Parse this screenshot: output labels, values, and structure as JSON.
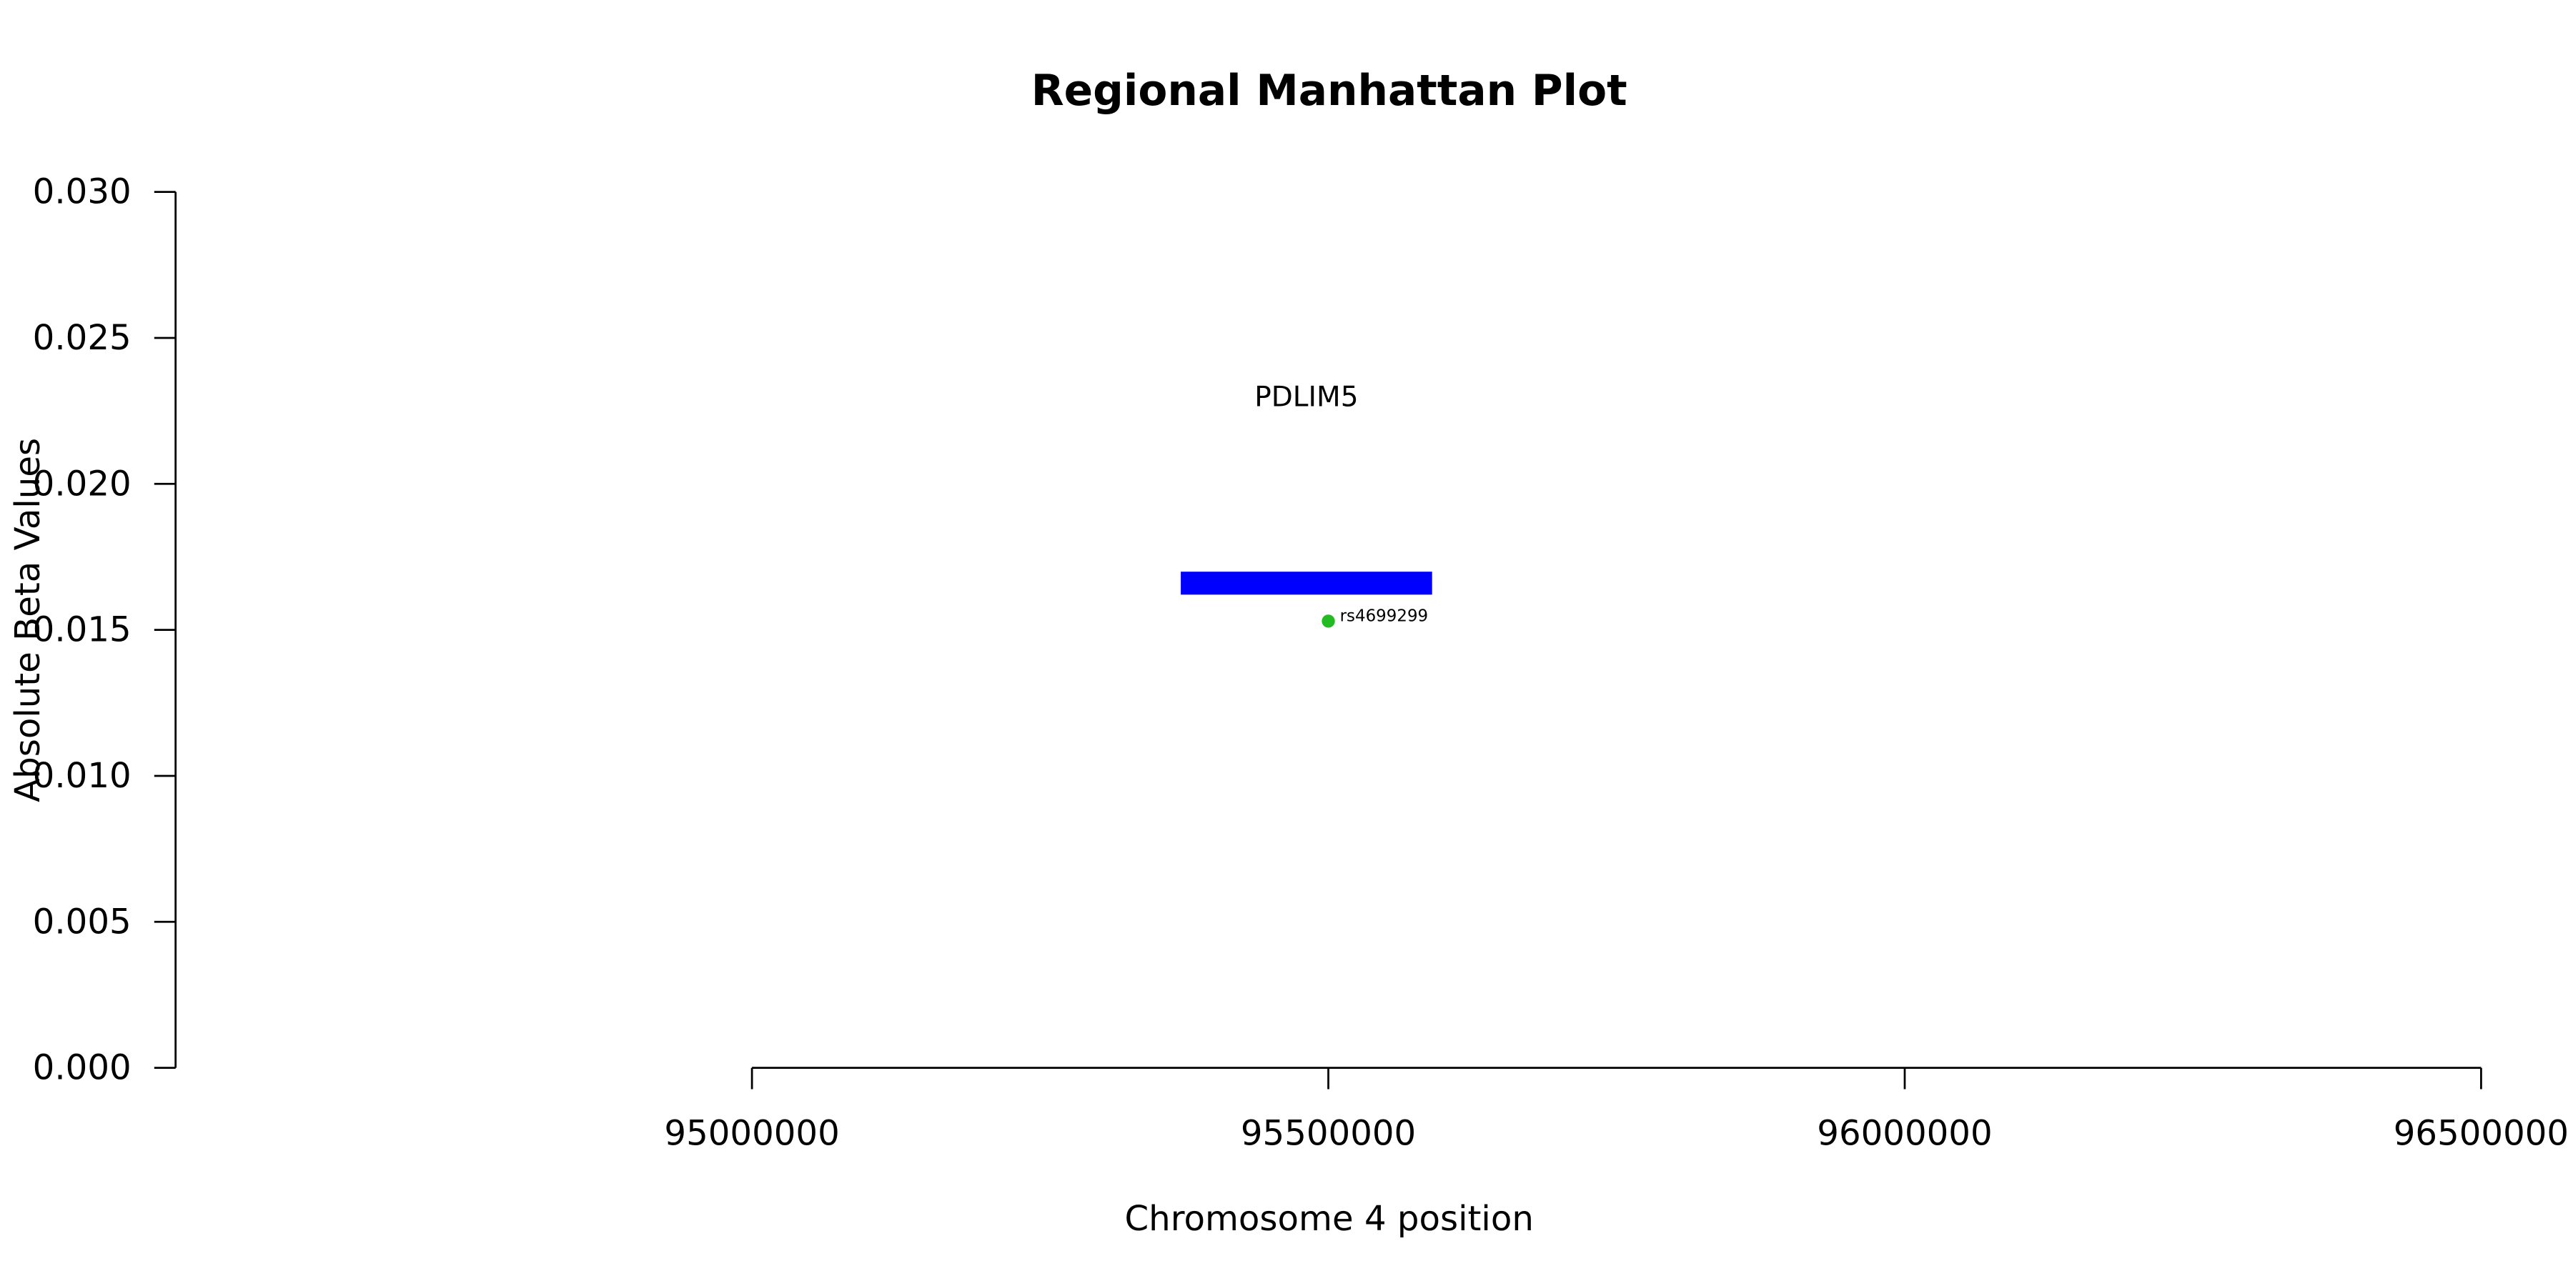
{
  "chart_data": {
    "type": "scatter",
    "title": "Regional Manhattan Plot",
    "x_label": "Chromosome 4 position",
    "y_label": "Absolute Beta Values",
    "xlim": [
      94500000,
      96500000
    ],
    "ylim": [
      0,
      0.03
    ],
    "xticks": [
      95000000,
      95500000,
      96000000,
      96500000
    ],
    "yticks": [
      {
        "value": 0,
        "label": "0.000"
      },
      {
        "value": 0.005,
        "label": "0.005"
      },
      {
        "value": 0.01,
        "label": "0.010"
      },
      {
        "value": 0.015,
        "label": "0.015"
      },
      {
        "value": 0.02,
        "label": "0.020"
      },
      {
        "value": 0.025,
        "label": "0.025"
      },
      {
        "value": 0.03,
        "label": "0.030"
      }
    ],
    "points": {
      "x": [
        95500000
      ],
      "y": [
        0.0153
      ],
      "labels": [
        "rs4699299"
      ],
      "color": "#22bb22"
    },
    "genes": [
      {
        "label": "PDLIM5",
        "start": 95372000,
        "end": 95590000,
        "y": 0.0166,
        "label_y": 0.023,
        "color": "#0000ff"
      }
    ],
    "grid": false
  }
}
